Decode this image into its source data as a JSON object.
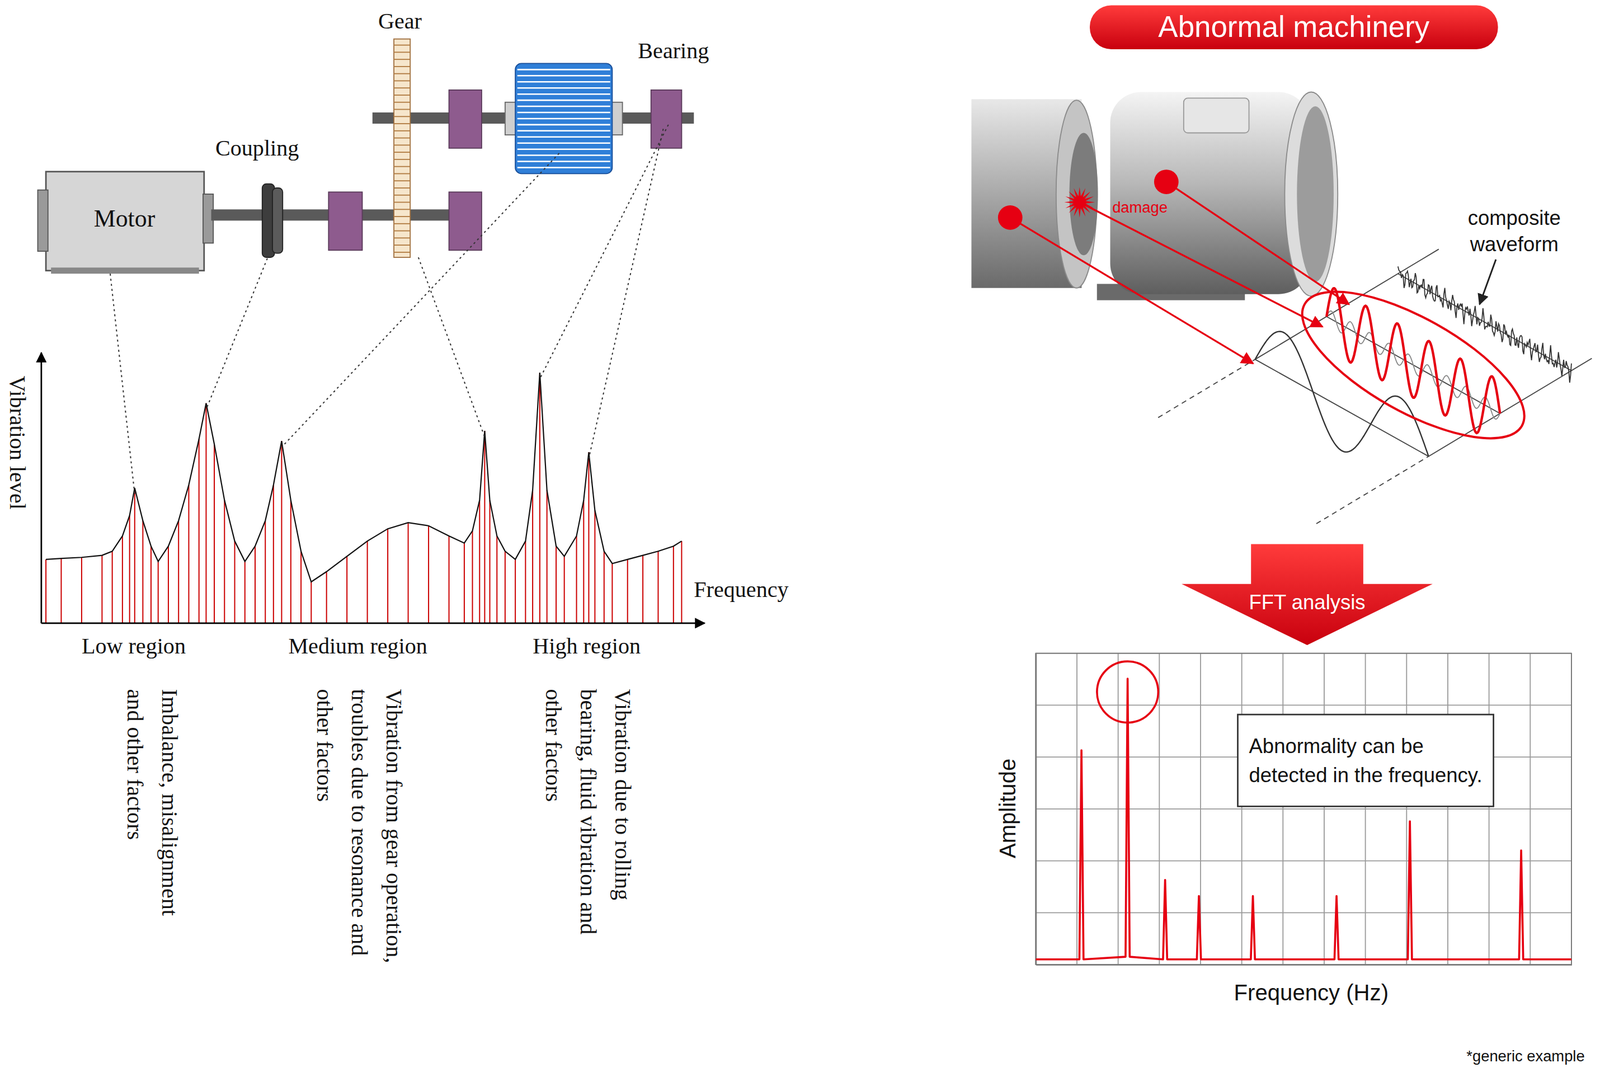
{
  "machine_diagram": {
    "motor": "Motor",
    "coupling": "Coupling",
    "gear": "Gear",
    "bearing": "Bearing"
  },
  "chart_data": [
    {
      "type": "stem",
      "x_label": "Frequency",
      "y_label": "Vibration level",
      "x": [
        5,
        20,
        40,
        60,
        70,
        80,
        87,
        92,
        100,
        108,
        115,
        125,
        135,
        145,
        155,
        162,
        170,
        180,
        190,
        200,
        210,
        220,
        228,
        236,
        245,
        255,
        265,
        280,
        300,
        320,
        340,
        360,
        380,
        400,
        415,
        423,
        430,
        435,
        440,
        447,
        455,
        465,
        475,
        482,
        489,
        496,
        505,
        513,
        525,
        532,
        537,
        543,
        552,
        560,
        575,
        590,
        605,
        620,
        628
      ],
      "values": [
        62,
        63,
        64,
        66,
        70,
        85,
        105,
        132,
        100,
        75,
        60,
        75,
        100,
        135,
        180,
        215,
        175,
        120,
        80,
        60,
        75,
        100,
        135,
        178,
        120,
        70,
        40,
        50,
        65,
        80,
        92,
        98,
        95,
        85,
        78,
        90,
        120,
        188,
        120,
        85,
        70,
        62,
        80,
        130,
        245,
        130,
        75,
        65,
        85,
        120,
        167,
        110,
        70,
        58,
        62,
        66,
        70,
        75,
        80
      ],
      "xlim": [
        0,
        650
      ],
      "ylim": [
        0,
        265
      ],
      "tick_labels": false,
      "color": "#cc0000",
      "regions": [
        {
          "label": "Low region",
          "description": [
            "Imbalance, misalignment",
            "and other factors"
          ]
        },
        {
          "label": "Medium region",
          "description": [
            "Vibration from gear operation,",
            "troubles due to resonance and",
            "other factors"
          ]
        },
        {
          "label": "High region",
          "description": [
            "Vibration due to rolling",
            "bearing, fluid vibration and",
            "other factors"
          ]
        }
      ]
    },
    {
      "type": "line",
      "x_label": "Frequency (Hz)",
      "y_label": "Amplitude",
      "x": [
        0,
        1.06,
        1.11,
        1.16,
        2.18,
        2.23,
        2.28,
        3.09,
        3.14,
        3.19,
        3.91,
        3.96,
        4.01,
        5.22,
        5.27,
        5.32,
        7.25,
        7.3,
        7.35,
        9.03,
        9.08,
        9.13,
        11.73,
        11.78,
        11.83,
        13
      ],
      "values": [
        0.1,
        0.1,
        4.13,
        0.1,
        0.15,
        5.51,
        0.15,
        0.1,
        1.63,
        0.1,
        0.1,
        1.32,
        0.1,
        0.1,
        1.32,
        0.1,
        0.1,
        1.32,
        0.1,
        0.1,
        2.76,
        0.1,
        0.1,
        2.2,
        0.1,
        0.1
      ],
      "xlim": [
        0,
        13
      ],
      "ylim": [
        0,
        6
      ],
      "xticks": [
        0,
        1,
        2,
        3,
        4,
        5,
        6,
        7,
        8,
        9,
        10,
        11,
        12,
        13
      ],
      "yticks": [
        0,
        1,
        2,
        3,
        4,
        5,
        6
      ],
      "grid": true,
      "tick_labels": false,
      "color": "#e60012"
    }
  ],
  "illustration": {
    "title": "Abnormal machinery",
    "damage": "damage",
    "composite_waveform": [
      "composite",
      "waveform"
    ],
    "process": "FFT analysis",
    "note": [
      "Abnormality can be",
      "detected in the frequency."
    ],
    "footnote": "*generic example"
  }
}
